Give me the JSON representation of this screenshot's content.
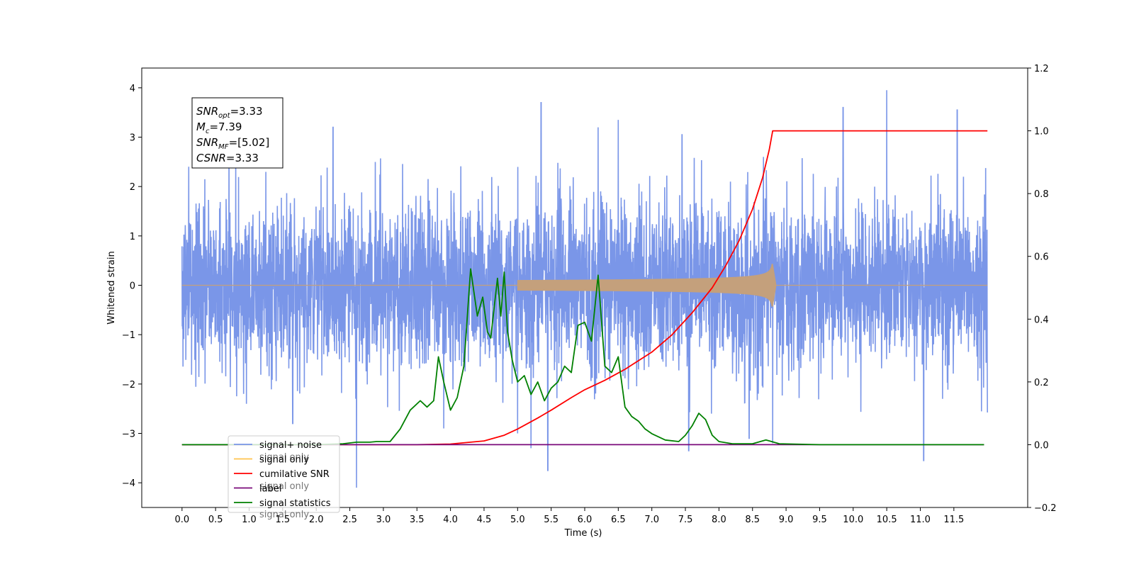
{
  "chart_data": {
    "type": "line",
    "xlabel": "Time (s)",
    "ylabel": "Whitened strain",
    "xlim": [
      -0.6,
      12.6
    ],
    "ylim": [
      -4.5,
      4.4
    ],
    "y2lim": [
      -0.2,
      1.2
    ],
    "x_ticks": [
      "0.0",
      "0.5",
      "1.0",
      "1.5",
      "2.0",
      "2.5",
      "3.0",
      "3.5",
      "4.0",
      "4.5",
      "5.0",
      "5.5",
      "6.0",
      "6.5",
      "7.0",
      "7.5",
      "8.0",
      "8.5",
      "9.0",
      "9.5",
      "10.0",
      "10.5",
      "11.0",
      "11.5"
    ],
    "y_ticks": [
      "4",
      "3",
      "2",
      "1",
      "0",
      "−1",
      "−2",
      "−3",
      "−4"
    ],
    "y2_ticks": [
      "1.2",
      "1.0",
      "0.8",
      "0.6",
      "0.4",
      "0.2",
      "0.0",
      "−0.2"
    ],
    "annotation": [
      {
        "base": "SNR",
        "sub": "opt",
        "value": "=3.33"
      },
      {
        "base": "M",
        "sub": "c",
        "value": "=7.39"
      },
      {
        "base": "SNR",
        "sub": "MF",
        "value": "=[5.02]"
      },
      {
        "base": "CSNR",
        "sub": "",
        "value": "=3.33"
      }
    ],
    "legend": {
      "position": "lower-left",
      "entries": [
        {
          "label": "signal+ noise",
          "color": "#7a96e8"
        },
        {
          "label": "signal only",
          "color": "#ffc34d"
        },
        {
          "label": "cumilative SNR",
          "color": "#ff0000"
        },
        {
          "label": "label",
          "color": "#7a0a7a"
        },
        {
          "label": "signal statistics",
          "color": "#008000"
        }
      ],
      "hidden_text": [
        "signal only",
        "signal only",
        "signal only"
      ]
    },
    "series": [
      {
        "name": "signal+ noise",
        "axis": "left",
        "color": "#7a96e8",
        "style": "noise",
        "x_range": [
          0,
          12
        ],
        "std": 0.85,
        "spikes": [
          {
            "x": 0.1,
            "y": 2.4
          },
          {
            "x": 0.7,
            "y": 2.95
          },
          {
            "x": 2.25,
            "y": 3.2
          },
          {
            "x": 2.6,
            "y": -4.1
          },
          {
            "x": 5.35,
            "y": 3.7
          },
          {
            "x": 5.45,
            "y": -3.75
          },
          {
            "x": 5.2,
            "y": -3.3
          },
          {
            "x": 6.2,
            "y": 3.2
          },
          {
            "x": 6.5,
            "y": 3.35
          },
          {
            "x": 7.45,
            "y": 3.05
          },
          {
            "x": 7.55,
            "y": -3.35
          },
          {
            "x": 8.45,
            "y": -3.1
          },
          {
            "x": 8.8,
            "y": -3.2
          },
          {
            "x": 9.85,
            "y": 3.6
          },
          {
            "x": 10.5,
            "y": 3.95
          },
          {
            "x": 11.05,
            "y": -3.55
          },
          {
            "x": 11.55,
            "y": 3.55
          },
          {
            "x": 1.65,
            "y": -2.8
          },
          {
            "x": 3.9,
            "y": -2.9
          },
          {
            "x": 5.0,
            "y": -3.0
          }
        ]
      },
      {
        "name": "signal only",
        "axis": "left",
        "color": "#c4a07c",
        "style": "chirp",
        "x_start": 5.0,
        "x_merge": 8.8,
        "amp_peak": 0.45
      },
      {
        "name": "cumilative SNR",
        "axis": "right",
        "color": "#ff0000",
        "style": "line",
        "x": [
          0,
          3.5,
          4.0,
          4.5,
          4.8,
          5.0,
          5.3,
          5.5,
          5.8,
          6.0,
          6.3,
          6.6,
          7.0,
          7.3,
          7.6,
          7.9,
          8.1,
          8.3,
          8.5,
          8.65,
          8.75,
          8.8,
          12.0
        ],
        "y": [
          0,
          0,
          0.002,
          0.012,
          0.03,
          0.05,
          0.085,
          0.11,
          0.15,
          0.175,
          0.205,
          0.24,
          0.295,
          0.35,
          0.42,
          0.5,
          0.57,
          0.65,
          0.75,
          0.85,
          0.94,
          1.0,
          1.0
        ]
      },
      {
        "name": "label",
        "axis": "right",
        "color": "#7a0a7a",
        "style": "line",
        "x": [
          0,
          11.95
        ],
        "y": [
          0,
          0
        ]
      },
      {
        "name": "signal statistics",
        "axis": "right",
        "color": "#008000",
        "style": "line",
        "x": [
          0,
          2.0,
          2.4,
          2.6,
          2.8,
          2.9,
          3.1,
          3.25,
          3.4,
          3.55,
          3.65,
          3.75,
          3.82,
          3.9,
          4.0,
          4.1,
          4.2,
          4.3,
          4.4,
          4.48,
          4.55,
          4.6,
          4.7,
          4.75,
          4.8,
          4.85,
          4.92,
          5.0,
          5.1,
          5.2,
          5.3,
          5.4,
          5.5,
          5.6,
          5.7,
          5.8,
          5.9,
          6.0,
          6.1,
          6.2,
          6.3,
          6.4,
          6.5,
          6.6,
          6.7,
          6.8,
          6.9,
          7.0,
          7.2,
          7.4,
          7.5,
          7.6,
          7.7,
          7.8,
          7.9,
          8.0,
          8.2,
          8.5,
          8.7,
          8.9,
          9.5,
          11.95
        ],
        "y": [
          0,
          0,
          0.003,
          0.008,
          0.008,
          0.01,
          0.01,
          0.05,
          0.11,
          0.14,
          0.12,
          0.14,
          0.28,
          0.2,
          0.11,
          0.15,
          0.25,
          0.56,
          0.41,
          0.47,
          0.36,
          0.34,
          0.53,
          0.41,
          0.55,
          0.36,
          0.27,
          0.2,
          0.22,
          0.16,
          0.2,
          0.14,
          0.18,
          0.2,
          0.25,
          0.23,
          0.38,
          0.39,
          0.33,
          0.54,
          0.25,
          0.23,
          0.28,
          0.12,
          0.09,
          0.075,
          0.05,
          0.035,
          0.015,
          0.01,
          0.03,
          0.06,
          0.1,
          0.08,
          0.03,
          0.01,
          0.003,
          0.003,
          0.015,
          0.003,
          0,
          0
        ]
      }
    ]
  }
}
